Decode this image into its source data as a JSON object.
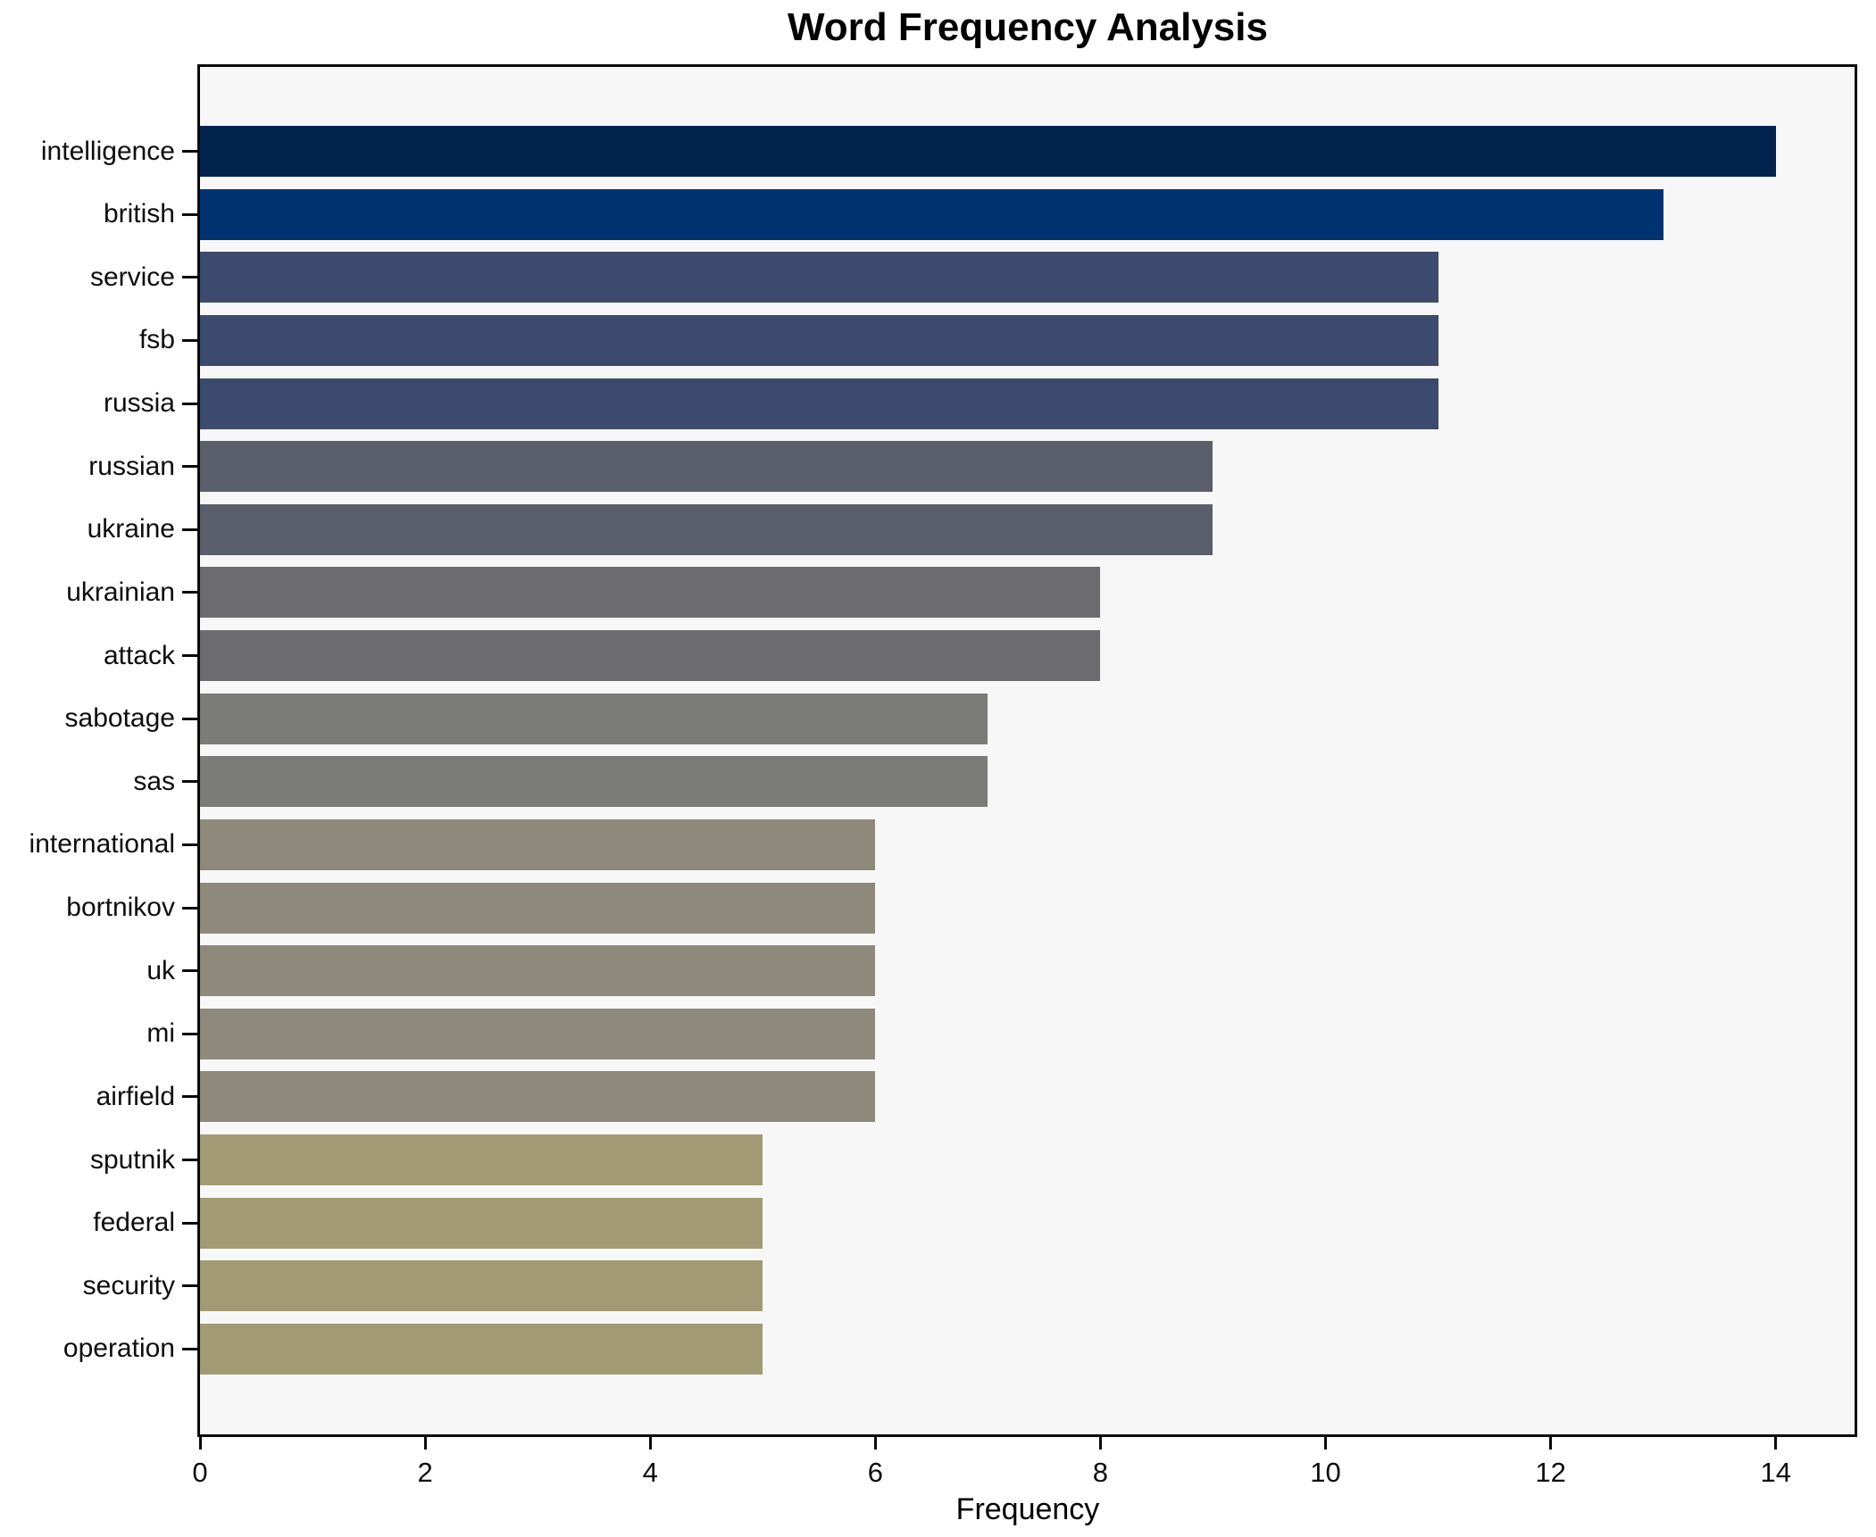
{
  "chart_data": {
    "type": "bar",
    "orientation": "horizontal",
    "title": "Word Frequency Analysis",
    "xlabel": "Frequency",
    "ylabel": "",
    "grid": false,
    "legend": null,
    "xlim": [
      0,
      14.7
    ],
    "x_ticks": [
      0,
      2,
      4,
      6,
      8,
      10,
      12,
      14
    ],
    "categories": [
      "intelligence",
      "british",
      "service",
      "fsb",
      "russia",
      "russian",
      "ukraine",
      "ukrainian",
      "attack",
      "sabotage",
      "sas",
      "international",
      "bortnikov",
      "uk",
      "mi",
      "airfield",
      "sputnik",
      "federal",
      "security",
      "operation"
    ],
    "values": [
      14,
      13,
      11,
      11,
      11,
      9,
      9,
      8,
      8,
      7,
      7,
      6,
      6,
      6,
      6,
      6,
      5,
      5,
      5,
      5
    ],
    "bar_colors": [
      "#02234e",
      "#003370",
      "#3c4a6d",
      "#3c4a6d",
      "#3c4a6d",
      "#5b5f6c",
      "#5b5f6c",
      "#6c6c70",
      "#6c6c70",
      "#7b7b77",
      "#7b7b77",
      "#8e897b",
      "#8e897b",
      "#8e897b",
      "#8e897b",
      "#8e897b",
      "#a19a75",
      "#a19a75",
      "#a19a75",
      "#a19a75"
    ],
    "colors": {
      "figure_background": "#ffffff",
      "plot_background": "#f7f7f8",
      "spine": "#0a0a0a",
      "text": "#0d0d0d"
    }
  }
}
